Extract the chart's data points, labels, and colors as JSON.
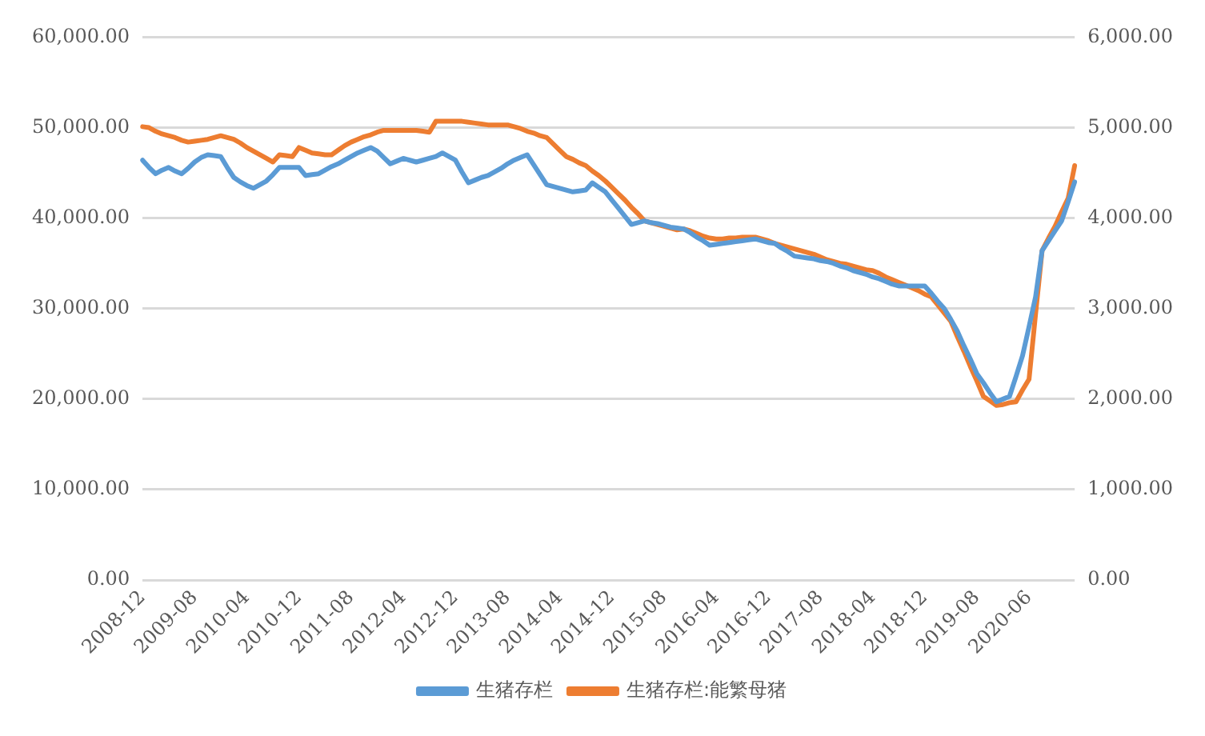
{
  "chart_data": {
    "type": "line",
    "categories": [
      "2008-12",
      null,
      null,
      null,
      null,
      null,
      null,
      null,
      "2009-08",
      null,
      null,
      null,
      null,
      null,
      null,
      null,
      "2010-04",
      null,
      null,
      null,
      null,
      null,
      null,
      null,
      "2010-12",
      null,
      null,
      null,
      null,
      null,
      null,
      null,
      "2011-08",
      null,
      null,
      null,
      null,
      null,
      null,
      null,
      "2012-04",
      null,
      null,
      null,
      null,
      null,
      null,
      null,
      "2012-12",
      null,
      null,
      null,
      null,
      null,
      null,
      null,
      "2013-08",
      null,
      null,
      null,
      null,
      null,
      null,
      null,
      "2014-04",
      null,
      null,
      null,
      null,
      null,
      null,
      null,
      "2014-12",
      null,
      null,
      null,
      null,
      null,
      null,
      null,
      "2015-08",
      null,
      null,
      null,
      null,
      null,
      null,
      null,
      "2016-04",
      null,
      null,
      null,
      null,
      null,
      null,
      null,
      "2016-12",
      null,
      null,
      null,
      null,
      null,
      null,
      null,
      "2017-08",
      null,
      null,
      null,
      null,
      null,
      null,
      null,
      "2018-04",
      null,
      null,
      null,
      null,
      null,
      null,
      null,
      "2018-12",
      null,
      null,
      null,
      null,
      null,
      null,
      null,
      "2019-08",
      null,
      null,
      null,
      null,
      null,
      null,
      null,
      "2020-06",
      null,
      null,
      null,
      null,
      null,
      null,
      null
    ],
    "series": [
      {
        "name": "生猪存栏",
        "color": "#5b9bd5",
        "values": [
          46400,
          45600,
          44900,
          45300,
          45600,
          45200,
          44900,
          45500,
          46200,
          46700,
          47000,
          46900,
          46800,
          45600,
          44500,
          44000,
          43600,
          43300,
          43700,
          44100,
          44800,
          45600,
          45600,
          45600,
          45600,
          44700,
          44800,
          44900,
          45300,
          45700,
          46000,
          46400,
          46800,
          47200,
          47500,
          47800,
          47400,
          46700,
          46000,
          46300,
          46600,
          46400,
          46200,
          46400,
          46600,
          46800,
          47200,
          46800,
          46400,
          45100,
          43900,
          44200,
          44500,
          44700,
          45100,
          45500,
          46000,
          46400,
          46700,
          47000,
          45900,
          44800,
          43700,
          43500,
          43300,
          43100,
          42900,
          43000,
          43100,
          43900,
          43400,
          42900,
          42000,
          41100,
          40200,
          39300,
          39500,
          39700,
          39500,
          39400,
          39200,
          39000,
          38900,
          38800,
          38400,
          37900,
          37500,
          37000,
          37100,
          37200,
          37300,
          37400,
          37500,
          37600,
          37700,
          37500,
          37300,
          37200,
          36700,
          36300,
          35800,
          35700,
          35600,
          35500,
          35300,
          35200,
          35000,
          34700,
          34500,
          34200,
          34000,
          33800,
          33500,
          33300,
          33000,
          32700,
          32500,
          32500,
          32500,
          32500,
          32500,
          31700,
          30800,
          30000,
          28800,
          27500,
          25900,
          24400,
          22800,
          21800,
          20700,
          19700,
          20000,
          20300,
          22500,
          24800,
          28000,
          31300,
          36400,
          37500,
          38600,
          39700,
          41800,
          44000
        ]
      },
      {
        "name": "生猪存栏:能繁母猪",
        "color": "#ed7d31",
        "axis": "y2",
        "values": [
          5010,
          5000,
          4960,
          4930,
          4910,
          4890,
          4860,
          4840,
          4850,
          4860,
          4870,
          4890,
          4910,
          4890,
          4870,
          4830,
          4780,
          4740,
          4700,
          4660,
          4620,
          4700,
          4690,
          4680,
          4780,
          4750,
          4720,
          4710,
          4700,
          4700,
          4750,
          4800,
          4840,
          4870,
          4900,
          4920,
          4950,
          4970,
          4970,
          4970,
          4970,
          4970,
          4970,
          4960,
          4950,
          5070,
          5070,
          5070,
          5070,
          5070,
          5060,
          5050,
          5040,
          5030,
          5030,
          5030,
          5030,
          5010,
          4990,
          4960,
          4940,
          4910,
          4890,
          4820,
          4750,
          4680,
          4650,
          4610,
          4580,
          4520,
          4470,
          4410,
          4340,
          4270,
          4200,
          4120,
          4050,
          3970,
          3950,
          3930,
          3910,
          3890,
          3870,
          3880,
          3860,
          3830,
          3800,
          3780,
          3770,
          3770,
          3780,
          3780,
          3790,
          3790,
          3790,
          3770,
          3750,
          3720,
          3700,
          3680,
          3660,
          3640,
          3620,
          3600,
          3570,
          3540,
          3520,
          3500,
          3490,
          3470,
          3450,
          3430,
          3420,
          3390,
          3350,
          3320,
          3290,
          3260,
          3230,
          3200,
          3160,
          3130,
          3040,
          2950,
          2860,
          2690,
          2530,
          2360,
          2200,
          2030,
          1980,
          1930,
          1940,
          1960,
          1970,
          2100,
          2220,
          2940,
          3640,
          3780,
          3910,
          4070,
          4220,
          4580
        ]
      }
    ],
    "ylim": [
      0,
      60000
    ],
    "yticks": [
      {
        "value": 0,
        "label": "0.00"
      },
      {
        "value": 10000,
        "label": "10,000.00"
      },
      {
        "value": 20000,
        "label": "20,000.00"
      },
      {
        "value": 30000,
        "label": "30,000.00"
      },
      {
        "value": 40000,
        "label": "40,000.00"
      },
      {
        "value": 50000,
        "label": "50,000.00"
      },
      {
        "value": 60000,
        "label": "60,000.00"
      }
    ],
    "y2lim": [
      0,
      6000
    ],
    "y2ticks": [
      {
        "value": 0,
        "label": "0.00"
      },
      {
        "value": 1000,
        "label": "1,000.00"
      },
      {
        "value": 2000,
        "label": "2,000.00"
      },
      {
        "value": 3000,
        "label": "3,000.00"
      },
      {
        "value": 4000,
        "label": "4,000.00"
      },
      {
        "value": 5000,
        "label": "5,000.00"
      },
      {
        "value": 6000,
        "label": "6,000.00"
      }
    ],
    "grid": "y",
    "legend": "bottom",
    "marker": "none",
    "line_style": "solid"
  }
}
